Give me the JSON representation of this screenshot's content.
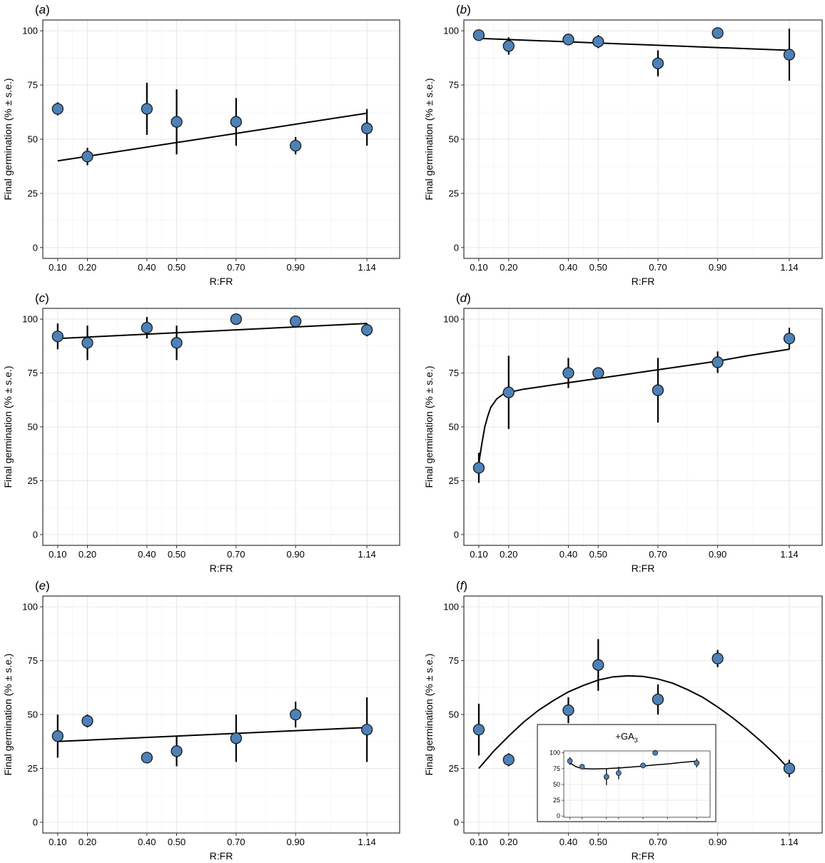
{
  "chart_data": [
    {
      "type": "scatter",
      "panel": "a",
      "xlabel": "R:FR",
      "ylabel": "Final germination (% ± s.e.)",
      "x_ticks": [
        0.1,
        0.2,
        0.4,
        0.5,
        0.7,
        0.9,
        1.14
      ],
      "x_tick_labels": [
        "0.10",
        "0.20",
        "0.40",
        "0.50",
        "0.70",
        "0.90",
        "1.14"
      ],
      "y_ticks": [
        0,
        25,
        50,
        75,
        100
      ],
      "y_tick_labels": [
        "0",
        "25",
        "50",
        "75",
        "100"
      ],
      "xlim": [
        0.05,
        1.25
      ],
      "ylim": [
        -5,
        105
      ],
      "grid": true,
      "points": [
        {
          "x": 0.1,
          "y": 64,
          "se": 3
        },
        {
          "x": 0.2,
          "y": 42,
          "se": 4
        },
        {
          "x": 0.4,
          "y": 64,
          "se": 12
        },
        {
          "x": 0.5,
          "y": 58,
          "se": 15
        },
        {
          "x": 0.7,
          "y": 58,
          "se": 11
        },
        {
          "x": 0.9,
          "y": 47,
          "se": 4
        },
        {
          "x": 1.14,
          "y": 55,
          "se": 8
        }
      ],
      "fit": {
        "x": [
          0.1,
          1.14
        ],
        "y": [
          40,
          62
        ]
      },
      "fit_end_marks": [
        {
          "x": 1.14,
          "y1": 62,
          "y2": 64
        }
      ]
    },
    {
      "type": "scatter",
      "panel": "b",
      "xlabel": "R:FR",
      "ylabel": "Final germination (% ± s.e.)",
      "x_ticks": [
        0.1,
        0.2,
        0.4,
        0.5,
        0.7,
        0.9,
        1.14
      ],
      "x_tick_labels": [
        "0.10",
        "0.20",
        "0.40",
        "0.50",
        "0.70",
        "0.90",
        "1.14"
      ],
      "y_ticks": [
        0,
        25,
        50,
        75,
        100
      ],
      "y_tick_labels": [
        "0",
        "25",
        "50",
        "75",
        "100"
      ],
      "xlim": [
        0.05,
        1.25
      ],
      "ylim": [
        -5,
        105
      ],
      "grid": true,
      "points": [
        {
          "x": 0.1,
          "y": 98,
          "se": 1
        },
        {
          "x": 0.2,
          "y": 93,
          "se": 4
        },
        {
          "x": 0.4,
          "y": 96,
          "se": 1
        },
        {
          "x": 0.5,
          "y": 95,
          "se": 3
        },
        {
          "x": 0.7,
          "y": 85,
          "se": 6
        },
        {
          "x": 0.9,
          "y": 99,
          "se": 1
        },
        {
          "x": 1.14,
          "y": 89,
          "se": 12
        }
      ],
      "fit": {
        "x": [
          0.1,
          1.14
        ],
        "y": [
          96.5,
          91
        ]
      }
    },
    {
      "type": "scatter",
      "panel": "c",
      "xlabel": "R:FR",
      "ylabel": "Final germination (% ± s.e.)",
      "x_ticks": [
        0.1,
        0.2,
        0.4,
        0.5,
        0.7,
        0.9,
        1.14
      ],
      "x_tick_labels": [
        "0.10",
        "0.20",
        "0.40",
        "0.50",
        "0.70",
        "0.90",
        "1.14"
      ],
      "y_ticks": [
        0,
        25,
        50,
        75,
        100
      ],
      "y_tick_labels": [
        "0",
        "25",
        "50",
        "75",
        "100"
      ],
      "xlim": [
        0.05,
        1.25
      ],
      "ylim": [
        -5,
        105
      ],
      "grid": true,
      "points": [
        {
          "x": 0.1,
          "y": 92,
          "se": 6
        },
        {
          "x": 0.2,
          "y": 89,
          "se": 8
        },
        {
          "x": 0.4,
          "y": 96,
          "se": 5
        },
        {
          "x": 0.5,
          "y": 89,
          "se": 8
        },
        {
          "x": 0.7,
          "y": 100,
          "se": 1
        },
        {
          "x": 0.9,
          "y": 99,
          "se": 1
        },
        {
          "x": 1.14,
          "y": 95,
          "se": 3
        }
      ],
      "fit": {
        "x": [
          0.1,
          1.14
        ],
        "y": [
          91,
          98
        ]
      }
    },
    {
      "type": "scatter",
      "panel": "d",
      "xlabel": "R:FR",
      "ylabel": "Final germination (% ± s.e.)",
      "x_ticks": [
        0.1,
        0.2,
        0.4,
        0.5,
        0.7,
        0.9,
        1.14
      ],
      "x_tick_labels": [
        "0.10",
        "0.20",
        "0.40",
        "0.50",
        "0.70",
        "0.90",
        "1.14"
      ],
      "y_ticks": [
        0,
        25,
        50,
        75,
        100
      ],
      "y_tick_labels": [
        "0",
        "25",
        "50",
        "75",
        "100"
      ],
      "xlim": [
        0.05,
        1.25
      ],
      "ylim": [
        -5,
        105
      ],
      "grid": true,
      "points": [
        {
          "x": 0.1,
          "y": 31,
          "se": 7
        },
        {
          "x": 0.2,
          "y": 66,
          "se": 17
        },
        {
          "x": 0.4,
          "y": 75,
          "se": 7
        },
        {
          "x": 0.5,
          "y": 75,
          "se": 2
        },
        {
          "x": 0.7,
          "y": 67,
          "se": 15
        },
        {
          "x": 0.9,
          "y": 80,
          "se": 5
        },
        {
          "x": 1.14,
          "y": 91,
          "se": 5
        }
      ],
      "fit": {
        "x": [
          0.1,
          0.11,
          0.12,
          0.13,
          0.14,
          0.15,
          0.16,
          0.18,
          0.2,
          0.25,
          0.3,
          0.4,
          0.5,
          0.6,
          0.7,
          0.8,
          0.9,
          1.0,
          1.14
        ],
        "y": [
          33,
          42,
          50,
          55,
          59,
          61,
          63,
          65,
          66,
          67.5,
          68.5,
          70.5,
          72.5,
          74.5,
          76.5,
          78.5,
          80.5,
          83,
          86
        ]
      }
    },
    {
      "type": "scatter",
      "panel": "e",
      "xlabel": "R:FR",
      "ylabel": "Final germination (% ± s.e.)",
      "x_ticks": [
        0.1,
        0.2,
        0.4,
        0.5,
        0.7,
        0.9,
        1.14
      ],
      "x_tick_labels": [
        "0.10",
        "0.20",
        "0.40",
        "0.50",
        "0.70",
        "0.90",
        "1.14"
      ],
      "y_ticks": [
        0,
        25,
        50,
        75,
        100
      ],
      "y_tick_labels": [
        "0",
        "25",
        "50",
        "75",
        "100"
      ],
      "xlim": [
        0.05,
        1.25
      ],
      "ylim": [
        -5,
        105
      ],
      "grid": true,
      "points": [
        {
          "x": 0.1,
          "y": 40,
          "se": 10
        },
        {
          "x": 0.2,
          "y": 47,
          "se": 3
        },
        {
          "x": 0.4,
          "y": 30,
          "se": 1
        },
        {
          "x": 0.5,
          "y": 33,
          "se": 7
        },
        {
          "x": 0.7,
          "y": 39,
          "se": 11
        },
        {
          "x": 0.9,
          "y": 50,
          "se": 6
        },
        {
          "x": 1.14,
          "y": 43,
          "se": 15
        }
      ],
      "fit": {
        "x": [
          0.1,
          1.14
        ],
        "y": [
          37.5,
          44
        ]
      }
    },
    {
      "type": "scatter",
      "panel": "f",
      "xlabel": "R:FR",
      "ylabel": "Final germination (% ± s.e.)",
      "x_ticks": [
        0.1,
        0.2,
        0.4,
        0.5,
        0.7,
        0.9,
        1.14
      ],
      "x_tick_labels": [
        "0.10",
        "0.20",
        "0.40",
        "0.50",
        "0.70",
        "0.90",
        "1.14"
      ],
      "y_ticks": [
        0,
        25,
        50,
        75,
        100
      ],
      "y_tick_labels": [
        "0",
        "25",
        "50",
        "75",
        "100"
      ],
      "xlim": [
        0.05,
        1.25
      ],
      "ylim": [
        -5,
        105
      ],
      "grid": true,
      "points": [
        {
          "x": 0.1,
          "y": 43,
          "se": 12
        },
        {
          "x": 0.2,
          "y": 29,
          "se": 3
        },
        {
          "x": 0.4,
          "y": 52,
          "se": 6
        },
        {
          "x": 0.5,
          "y": 73,
          "se": 12
        },
        {
          "x": 0.7,
          "y": 57,
          "se": 7
        },
        {
          "x": 0.9,
          "y": 76,
          "se": 4
        },
        {
          "x": 1.14,
          "y": 25,
          "se": 4
        }
      ],
      "fit": {
        "x": [
          0.1,
          0.15,
          0.2,
          0.25,
          0.3,
          0.35,
          0.4,
          0.45,
          0.5,
          0.55,
          0.6,
          0.65,
          0.7,
          0.75,
          0.8,
          0.85,
          0.9,
          0.95,
          1.0,
          1.05,
          1.1,
          1.14
        ],
        "y": [
          25,
          33,
          40,
          46.5,
          52,
          56.5,
          60.5,
          63.5,
          66,
          67.5,
          68,
          67.7,
          66.5,
          64.5,
          61.5,
          58,
          53.5,
          48.5,
          43,
          37,
          30.5,
          24.5
        ]
      },
      "inset": {
        "title_prefix": "+GA",
        "title_subscript": "3",
        "xlim": [
          0.05,
          1.25
        ],
        "ylim": [
          -2,
          103
        ],
        "y_ticks": [
          0,
          25,
          50,
          75,
          100
        ],
        "y_tick_labels": [
          "0",
          "25",
          "50",
          "75",
          "100"
        ],
        "x_ticks": [
          0.1,
          0.2,
          0.4,
          0.5,
          0.7,
          0.9,
          1.14
        ],
        "points": [
          {
            "x": 0.1,
            "y": 87,
            "se": 6
          },
          {
            "x": 0.2,
            "y": 78,
            "se": 4
          },
          {
            "x": 0.4,
            "y": 62,
            "se": 13
          },
          {
            "x": 0.5,
            "y": 68,
            "se": 10
          },
          {
            "x": 0.7,
            "y": 80,
            "se": 4
          },
          {
            "x": 0.8,
            "y": 100,
            "se": 0
          },
          {
            "x": 1.14,
            "y": 84,
            "se": 7
          }
        ],
        "fit": {
          "x": [
            0.1,
            0.15,
            0.2,
            0.3,
            0.4,
            0.5,
            0.6,
            0.7,
            0.8,
            0.9,
            1.0,
            1.14
          ],
          "y": [
            84,
            78,
            75,
            74.5,
            75,
            76,
            77.5,
            79,
            81,
            82.5,
            84.5,
            87
          ]
        }
      }
    }
  ]
}
